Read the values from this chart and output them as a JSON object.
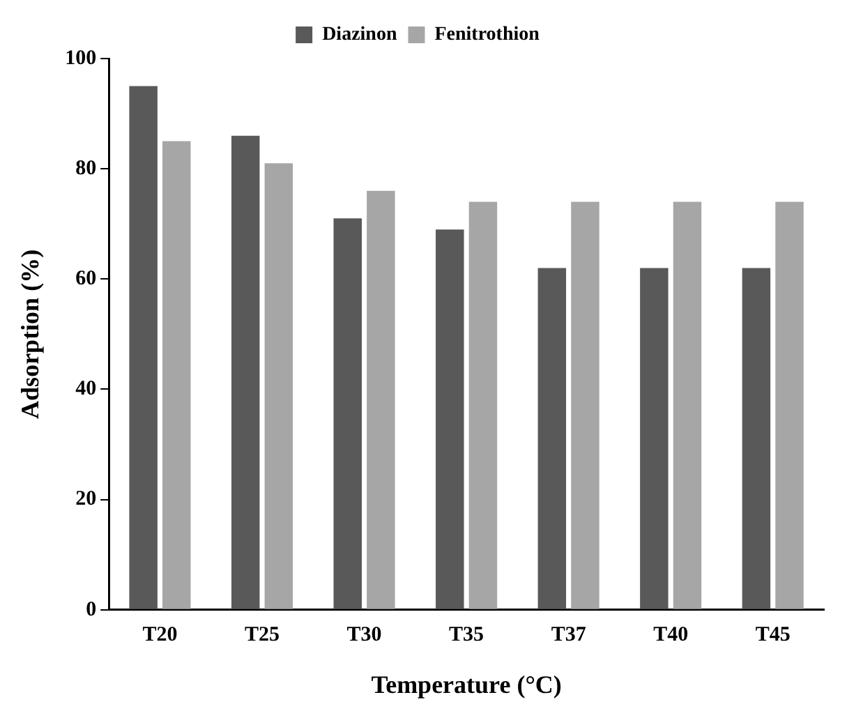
{
  "chart_data": {
    "type": "bar",
    "xlabel": "Temperature (°C)",
    "ylabel": "Adsorption (%)",
    "categories": [
      "T20",
      "T25",
      "T30",
      "T35",
      "T37",
      "T40",
      "T45"
    ],
    "series": [
      {
        "name": "Diazinon",
        "color": "#595959",
        "values": [
          95,
          86,
          71,
          69,
          62,
          62,
          62
        ]
      },
      {
        "name": "Fenitrothion",
        "color": "#a6a6a6",
        "values": [
          85,
          81,
          76,
          74,
          74,
          74,
          74
        ]
      }
    ],
    "ylim": [
      0,
      100
    ],
    "yticks": [
      0,
      20,
      40,
      60,
      80,
      100
    ],
    "grid": false,
    "legend": "top"
  }
}
